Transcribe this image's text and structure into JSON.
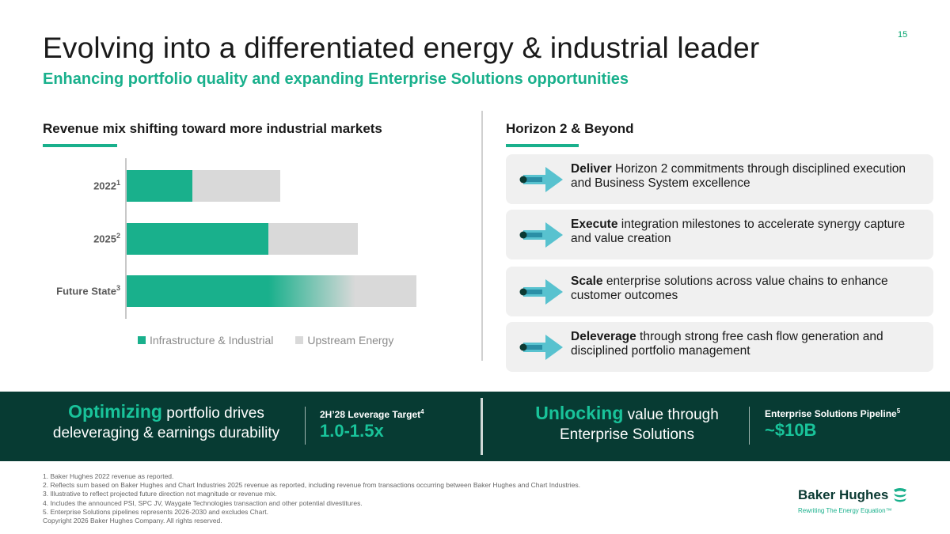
{
  "page_number": "15",
  "title": "Evolving into a differentiated energy & industrial leader",
  "subtitle": "Enhancing portfolio quality and expanding Enterprise Solutions opportunities",
  "left_section": {
    "heading": "Revenue mix shifting toward more industrial markets",
    "legend": [
      {
        "label": "Infrastructure & Industrial",
        "color": "#19b08c"
      },
      {
        "label": "Upstream Energy",
        "color": "#d9d9d9"
      }
    ]
  },
  "chart_data": {
    "type": "bar",
    "orientation": "horizontal",
    "stacked": true,
    "categories": [
      "2022",
      "2025",
      "Future State"
    ],
    "category_superscripts": [
      "1",
      "2",
      "3"
    ],
    "series": [
      {
        "name": "Infrastructure & Industrial",
        "values": [
          0.225,
          0.485,
          0.78
        ],
        "color": "#19b08c"
      },
      {
        "name": "Upstream Energy",
        "values": [
          0.3,
          0.305,
          0.21
        ],
        "color": "#d9d9d9"
      }
    ],
    "xlabel": "",
    "ylabel": "",
    "grid": false,
    "legend_position": "bottom"
  },
  "right_section": {
    "heading": "Horizon 2 & Beyond",
    "cards": [
      {
        "bold": "Deliver",
        "text": " Horizon 2 commitments through disciplined execution and Business System excellence"
      },
      {
        "bold": "Execute",
        "text": " integration milestones to accelerate synergy capture and value creation"
      },
      {
        "bold": "Scale",
        "text": " enterprise solutions across value chains to enhance customer outcomes"
      },
      {
        "bold": "Deleverage",
        "text": " through strong free cash flow generation and disciplined portfolio management"
      }
    ]
  },
  "banner": {
    "left": {
      "highlight": "Optimizing",
      "text_line1": " portfolio drives",
      "text_line2": "deleveraging & earnings durability"
    },
    "kpi1": {
      "label": "2H’28 Leverage Target",
      "sup": "4",
      "value": "1.0-1.5x"
    },
    "right": {
      "highlight": "Unlocking",
      "text_line1": " value through",
      "text_line2": "Enterprise Solutions"
    },
    "kpi2": {
      "label": "Enterprise Solutions Pipeline",
      "sup": "5",
      "value": "~$10B"
    }
  },
  "footnotes": [
    "1.  Baker Hughes 2022 revenue as reported.",
    "2.  Reflects sum based on Baker Hughes and Chart Industries 2025 revenue as reported, including revenue from transactions occurring between Baker Hughes and Chart Industries.",
    "3.  Illustrative to reflect projected future direction not magnitude or revenue mix.",
    "4.  Includes the announced PSI, SPC JV, Waygate Technologies transaction and other potential divestitures.",
    "5.  Enterprise Solutions pipelines represents 2026-2030 and excludes Chart.",
    "Copyright 2026 Baker Hughes Company. All rights reserved."
  ],
  "logo": {
    "name": "Baker Hughes",
    "tagline": "Rewriting The Energy Equation™"
  }
}
